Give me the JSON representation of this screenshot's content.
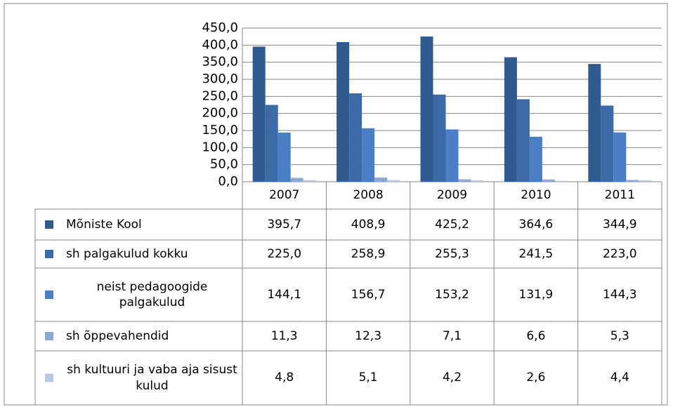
{
  "chart_data": {
    "type": "bar",
    "categories": [
      "2007",
      "2008",
      "2009",
      "2010",
      "2011"
    ],
    "series": [
      {
        "name": "Mõniste Kool",
        "color": "#2f5b91",
        "values": [
          395.7,
          408.9,
          425.2,
          364.6,
          344.9
        ],
        "value_labels": [
          "395,7",
          "408,9",
          "425,2",
          "364,6",
          "344,9"
        ]
      },
      {
        "name": "sh palgakulud kokku",
        "color": "#3b6aa6",
        "values": [
          225.0,
          258.9,
          255.3,
          241.5,
          223.0
        ],
        "value_labels": [
          "225,0",
          "258,9",
          "255,3",
          "241,5",
          "223,0"
        ]
      },
      {
        "name": "neist pedagoogide palgakulud",
        "color": "#4a7fc5",
        "values": [
          144.1,
          156.7,
          153.2,
          131.9,
          144.3
        ],
        "value_labels": [
          "144,1",
          "156,7",
          "153,2",
          "131,9",
          "144,3"
        ]
      },
      {
        "name": "sh õppevahendid",
        "color": "#8ea8d3",
        "values": [
          11.3,
          12.3,
          7.1,
          6.6,
          5.3
        ],
        "value_labels": [
          "11,3",
          "12,3",
          "7,1",
          "6,6",
          "5,3"
        ]
      },
      {
        "name": "sh kultuuri ja vaba aja sisust kulud",
        "color": "#b9c8e5",
        "values": [
          4.8,
          5.1,
          4.2,
          2.6,
          4.4
        ],
        "value_labels": [
          "4,8",
          "5,1",
          "4,2",
          "2,6",
          "4,4"
        ]
      }
    ],
    "ylim": [
      0,
      450
    ],
    "yticks": [
      {
        "value": 0,
        "label": "0,0"
      },
      {
        "value": 50,
        "label": "50,0"
      },
      {
        "value": 100,
        "label": "100,0"
      },
      {
        "value": 150,
        "label": "150,0"
      },
      {
        "value": 200,
        "label": "200,0"
      },
      {
        "value": 250,
        "label": "250,0"
      },
      {
        "value": 300,
        "label": "300,0"
      },
      {
        "value": 350,
        "label": "350,0"
      },
      {
        "value": 400,
        "label": "400,0"
      },
      {
        "value": 450,
        "label": "450,0"
      }
    ],
    "grid": true
  }
}
